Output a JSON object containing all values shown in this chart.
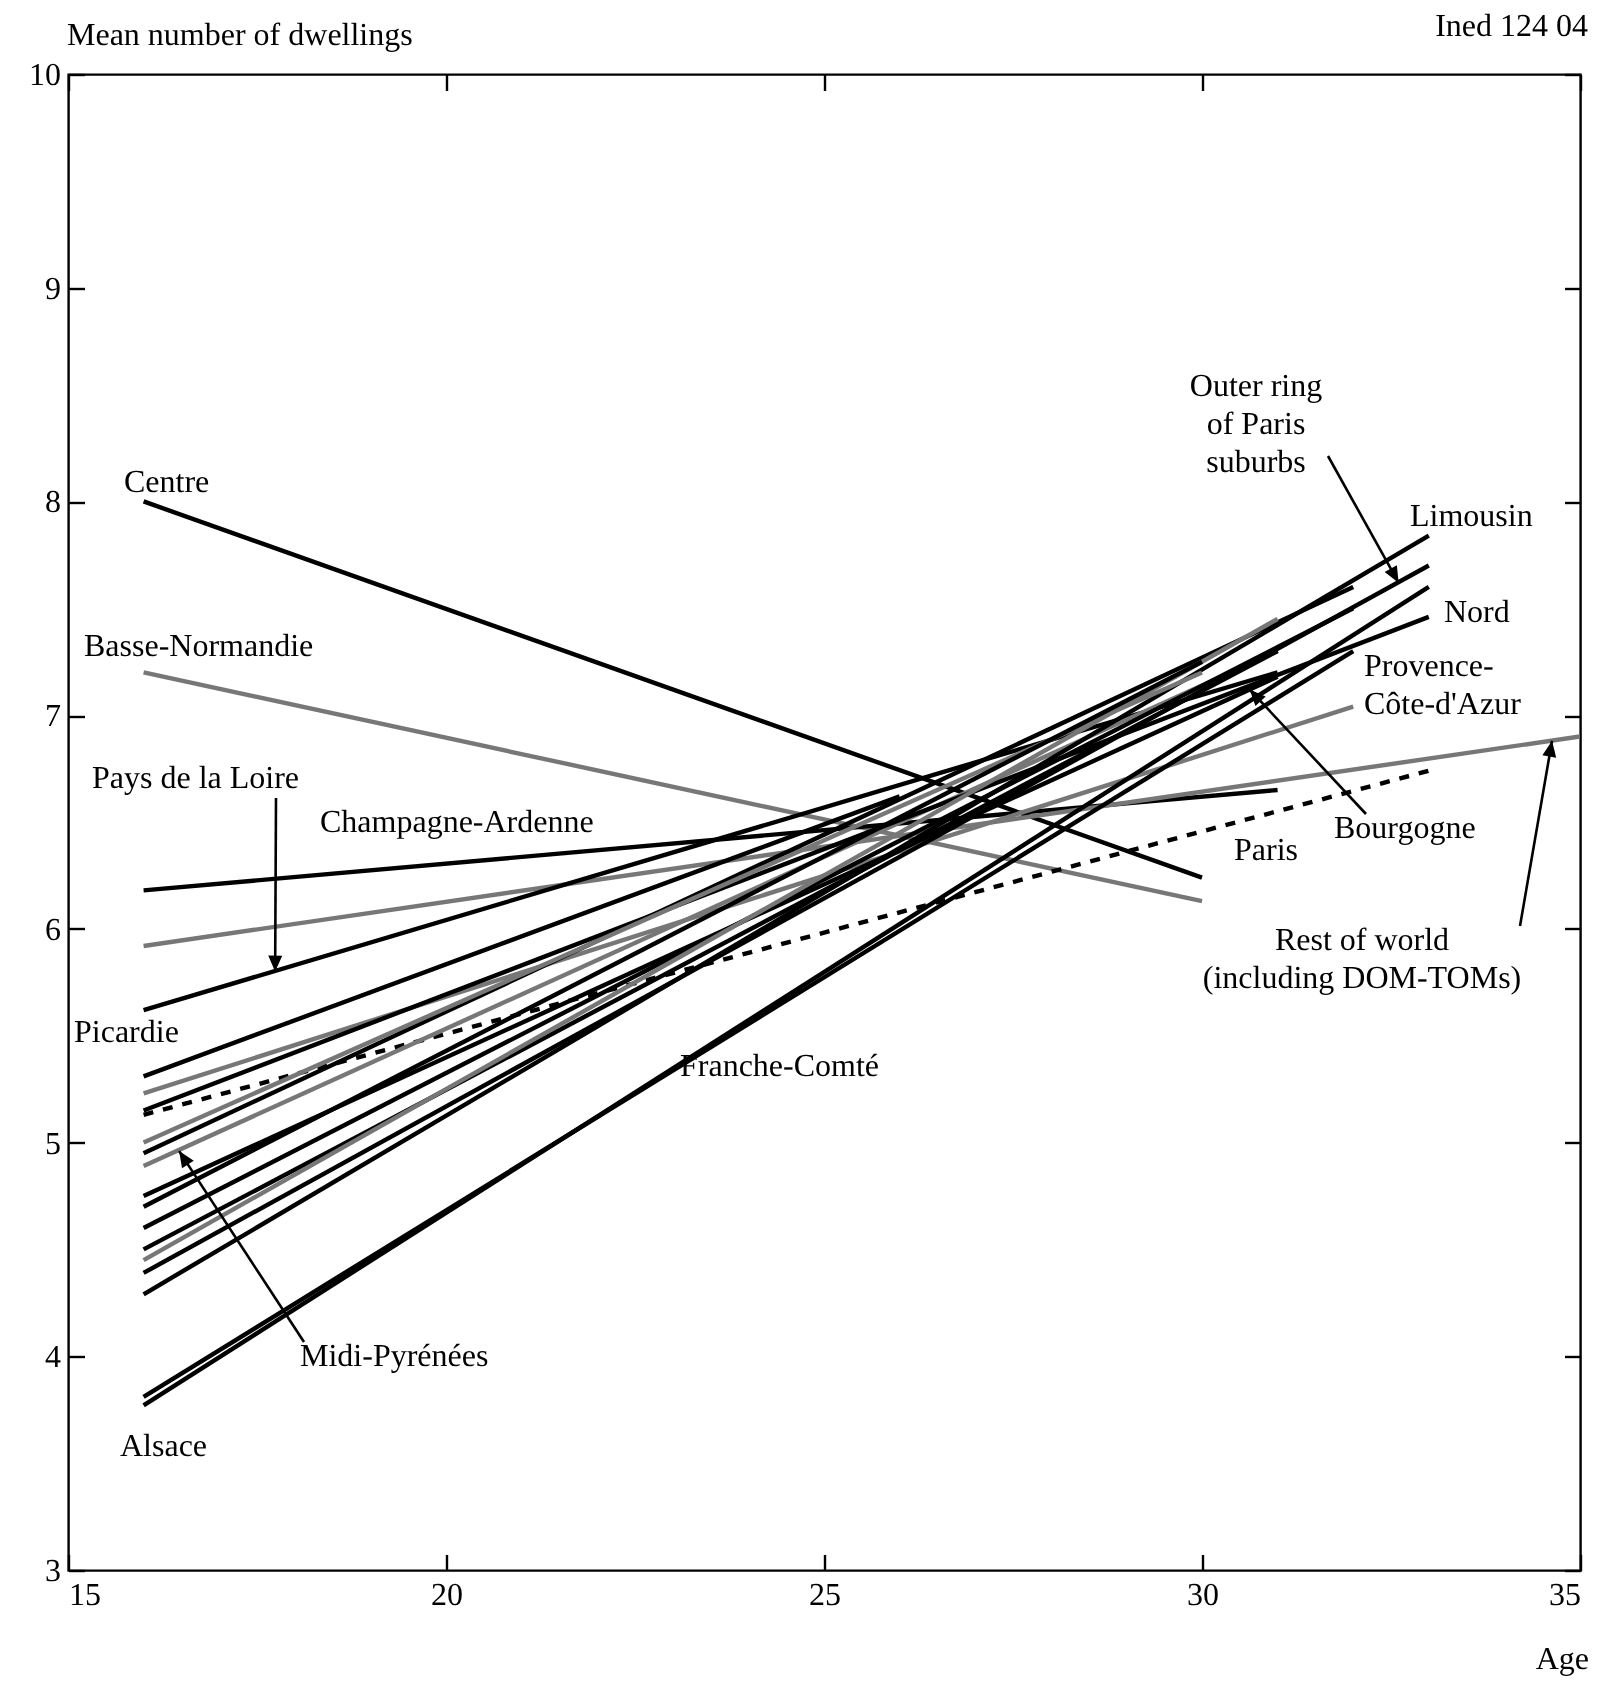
{
  "chart_data": {
    "type": "line",
    "xlabel": "Age",
    "ylabel": "Mean number of dwellings",
    "xlim": [
      15,
      35
    ],
    "ylim": [
      3,
      10
    ],
    "xticks": [
      15,
      20,
      25,
      30,
      35
    ],
    "yticks": [
      3,
      4,
      5,
      6,
      7,
      8,
      9,
      10
    ],
    "grid": false,
    "series": [
      {
        "color": "#000000",
        "x": [
          16,
          30
        ],
        "values": [
          8.0,
          6.24
        ]
      },
      {
        "color": "#777777",
        "x": [
          16,
          30
        ],
        "values": [
          7.2,
          6.13
        ]
      },
      {
        "color": "#000000",
        "x": [
          16,
          31
        ],
        "values": [
          6.18,
          6.65
        ]
      },
      {
        "color": "#777777",
        "x": [
          16,
          35
        ],
        "values": [
          5.92,
          6.9
        ]
      },
      {
        "color": "#000000",
        "x": [
          16,
          31
        ],
        "values": [
          5.62,
          7.2
        ]
      },
      {
        "color": "#000000",
        "x": [
          16,
          26
        ],
        "values": [
          5.31,
          6.62
        ]
      },
      {
        "color": "#000000",
        "x": [
          16,
          33
        ],
        "values": [
          5.13,
          6.74
        ],
        "line_style": "dashed"
      },
      {
        "color": "#777777",
        "x": [
          16,
          32
        ],
        "values": [
          5.23,
          7.04
        ]
      },
      {
        "color": "#777777",
        "x": [
          16,
          31
        ],
        "values": [
          4.89,
          7.3
        ]
      },
      {
        "color": "#000000",
        "x": [
          16,
          31
        ],
        "values": [
          4.75,
          7.18
        ]
      },
      {
        "color": "#000000",
        "x": [
          16,
          33
        ],
        "values": [
          5.15,
          7.46
        ]
      },
      {
        "color": "#000000",
        "x": [
          16,
          33
        ],
        "values": [
          4.39,
          7.7
        ]
      },
      {
        "color": "#000000",
        "x": [
          16,
          33
        ],
        "values": [
          4.29,
          7.84
        ]
      },
      {
        "color": "#000000",
        "x": [
          16,
          33
        ],
        "values": [
          3.77,
          7.6
        ]
      },
      {
        "color": "#000000",
        "x": [
          16,
          32
        ],
        "values": [
          3.81,
          7.3
        ]
      },
      {
        "color": "#000000",
        "x": [
          16,
          32
        ],
        "values": [
          4.6,
          7.5
        ]
      },
      {
        "color": "#000000",
        "x": [
          16,
          31
        ],
        "values": [
          4.5,
          7.3
        ]
      },
      {
        "color": "#000000",
        "x": [
          16,
          32
        ],
        "values": [
          4.95,
          7.6
        ]
      },
      {
        "color": "#777777",
        "x": [
          16,
          30
        ],
        "values": [
          5.0,
          7.2
        ]
      },
      {
        "color": "#777777",
        "x": [
          16,
          31
        ],
        "values": [
          4.45,
          7.45
        ]
      },
      {
        "color": "#000000",
        "x": [
          16,
          30
        ],
        "values": [
          4.7,
          7.25
        ]
      }
    ],
    "annotations": [
      "Ined 124 04",
      "Centre",
      "Basse-Normandie",
      {
        "text": "Pays de la Loire",
        "x": 17.74,
        "y": 5.8
      },
      "Champagne-Ardenne",
      "Picardie",
      {
        "text": "Midi-Pyrénées",
        "x": 16.47,
        "y": 4.96
      },
      "Alsace",
      "Franche-Comté",
      {
        "text": "Outer ring\nof Paris\nsuburbs",
        "x": 32.6,
        "y": 7.62
      },
      "Limousin",
      "Nord",
      "Provence-\nCôte-d'Azur",
      {
        "text": "Bourgogne",
        "x": 30.63,
        "y": 7.12
      },
      "Paris",
      {
        "text": "Rest of world\n(including DOM-TOMs)",
        "x": 34.63,
        "y": 6.88
      }
    ]
  }
}
